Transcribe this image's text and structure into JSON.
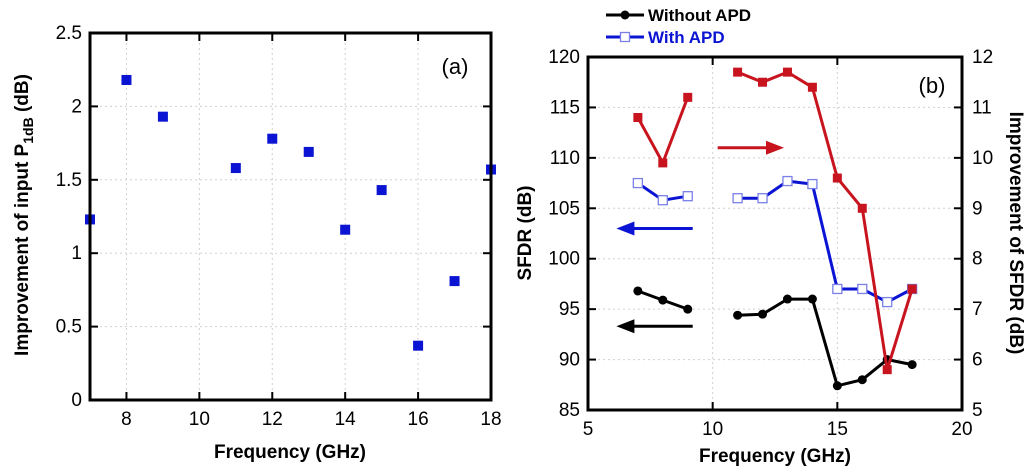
{
  "chart_data": [
    {
      "type": "scatter",
      "panel_label": "(a)",
      "xlabel": "Frequency (GHz)",
      "ylabel_main": "Improvement of input P",
      "ylabel_sub": "1dB",
      "ylabel_unit": " (dB)",
      "xlim": [
        7,
        18
      ],
      "ylim": [
        0,
        2.5
      ],
      "xticks": [
        "8",
        "10",
        "12",
        "14",
        "16",
        "18"
      ],
      "yticks": [
        "0",
        "0.5",
        "1",
        "1.5",
        "2",
        "2.5"
      ],
      "grid": true,
      "series": [
        {
          "name": "Improvement of input P1dB",
          "color": "#0a14d2",
          "marker": "square",
          "x": [
            7,
            8,
            9,
            11,
            12,
            13,
            14,
            15,
            16,
            17,
            18
          ],
          "y": [
            1.23,
            2.18,
            1.93,
            1.58,
            1.78,
            1.69,
            1.16,
            1.43,
            0.37,
            0.81,
            1.57
          ]
        }
      ]
    },
    {
      "type": "line",
      "panel_label": "(b)",
      "xlabel": "Frequency (GHz)",
      "ylabel_left": "SFDR (dB)",
      "ylabel_right": "Improvement of SFDR (dB)",
      "xlim": [
        5,
        20
      ],
      "ylim_left": [
        85,
        120
      ],
      "ylim_right": [
        5,
        12
      ],
      "xticks": [
        "5",
        "10",
        "15",
        "20"
      ],
      "yticks_left": [
        "85",
        "90",
        "95",
        "100",
        "105",
        "110",
        "115",
        "120"
      ],
      "yticks_right": [
        "5",
        "6",
        "7",
        "8",
        "9",
        "10",
        "11",
        "12"
      ],
      "grid": true,
      "legend_position": "top-center",
      "series": [
        {
          "name": "Without APD",
          "axis": "left",
          "color": "#000000",
          "marker": "circle",
          "segments": [
            {
              "x": [
                7,
                8,
                9
              ],
              "y": [
                96.8,
                95.9,
                95.0
              ]
            },
            {
              "x": [
                11,
                12,
                13,
                14,
                15,
                16,
                17,
                18
              ],
              "y": [
                94.4,
                94.5,
                96.0,
                96.0,
                87.4,
                88.0,
                90.0,
                89.5
              ]
            }
          ]
        },
        {
          "name": "With APD",
          "axis": "left",
          "color": "#0a14d2",
          "marker": "open-square",
          "segments": [
            {
              "x": [
                7,
                8,
                9
              ],
              "y": [
                107.5,
                105.8,
                106.2
              ]
            },
            {
              "x": [
                11,
                12,
                13,
                14,
                15,
                16,
                17,
                18
              ],
              "y": [
                106.0,
                106.0,
                107.7,
                107.4,
                97.0,
                97.0,
                95.7,
                97.0
              ]
            }
          ]
        },
        {
          "name": "Improvement of SFDR",
          "axis": "right",
          "color": "#c8141e",
          "marker": "square",
          "segments": [
            {
              "x": [
                7,
                8,
                9
              ],
              "y": [
                10.8,
                9.9,
                11.2
              ]
            },
            {
              "x": [
                11,
                12,
                13,
                14,
                15,
                16,
                17,
                18
              ],
              "y": [
                11.7,
                11.5,
                11.7,
                11.4,
                9.6,
                9.0,
                5.8,
                7.4
              ]
            }
          ]
        }
      ]
    }
  ]
}
